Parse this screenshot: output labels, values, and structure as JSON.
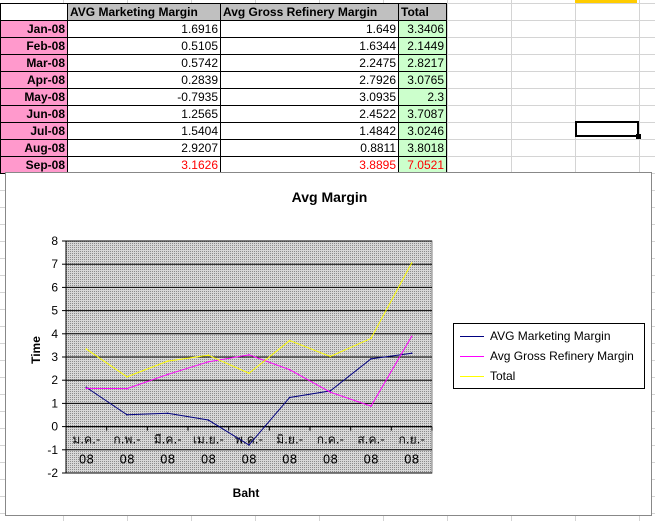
{
  "sheet": {
    "headers": [
      "AVG Marketing Margin",
      "Avg Gross Refinery Margin",
      "Total"
    ],
    "rows": [
      {
        "label": "Jan-08",
        "mkt": "1.6916",
        "ref": "1.649",
        "total": "3.3406"
      },
      {
        "label": "Feb-08",
        "mkt": "0.5105",
        "ref": "1.6344",
        "total": "2.1449"
      },
      {
        "label": "Mar-08",
        "mkt": "0.5742",
        "ref": "2.2475",
        "total": "2.8217"
      },
      {
        "label": "Apr-08",
        "mkt": "0.2839",
        "ref": "2.7926",
        "total": "3.0765"
      },
      {
        "label": "May-08",
        "mkt": "-0.7935",
        "ref": "3.0935",
        "total": "2.3"
      },
      {
        "label": "Jun-08",
        "mkt": "1.2565",
        "ref": "2.4522",
        "total": "3.7087"
      },
      {
        "label": "Jul-08",
        "mkt": "1.5404",
        "ref": "1.4842",
        "total": "3.0246"
      },
      {
        "label": "Aug-08",
        "mkt": "2.9207",
        "ref": "0.8811",
        "total": "3.8018"
      },
      {
        "label": "Sep-08",
        "mkt": "3.1626",
        "ref": "3.8895",
        "total": "7.0521"
      }
    ]
  },
  "chart_data": {
    "type": "line",
    "title": "Avg Margin",
    "xlabel": "Baht",
    "ylabel": "Time",
    "categories": [
      "ม.ค.-08",
      "ก.พ.-08",
      "มี.ค.-08",
      "เม.ย.-08",
      "พ.ค.-08",
      "มิ.ย.-08",
      "ก.ค.-08",
      "ส.ค.-08",
      "ก.ย.-08"
    ],
    "category_lines": [
      [
        "ม.ค.-",
        "08"
      ],
      [
        "ก.พ.-",
        "08"
      ],
      [
        "มี.ค.-",
        "08"
      ],
      [
        "เม.ย.-",
        "08"
      ],
      [
        "พ.ค.-",
        "08"
      ],
      [
        "มิ.ย.-",
        "08"
      ],
      [
        "ก.ค.-",
        "08"
      ],
      [
        "ส.ค.-",
        "08"
      ],
      [
        "ก.ย.-",
        "08"
      ]
    ],
    "ylim": [
      -2,
      8
    ],
    "yticks": [
      "8",
      "7",
      "6",
      "5",
      "4",
      "3",
      "2",
      "1",
      "0",
      "-1",
      "-2"
    ],
    "grid": true,
    "legend_position": "right",
    "series": [
      {
        "name": "AVG Marketing Margin",
        "color": "#000080",
        "values": [
          1.6916,
          0.5105,
          0.5742,
          0.2839,
          -0.7935,
          1.2565,
          1.5404,
          2.9207,
          3.1626
        ]
      },
      {
        "name": "Avg Gross Refinery Margin",
        "color": "#ff00ff",
        "values": [
          1.649,
          1.6344,
          2.2475,
          2.7926,
          3.0935,
          2.4522,
          1.4842,
          0.8811,
          3.8895
        ]
      },
      {
        "name": "Total",
        "color": "#ffff00",
        "values": [
          3.3406,
          2.1449,
          2.8217,
          3.0765,
          2.3,
          3.7087,
          3.0246,
          3.8018,
          7.0521
        ]
      }
    ]
  }
}
